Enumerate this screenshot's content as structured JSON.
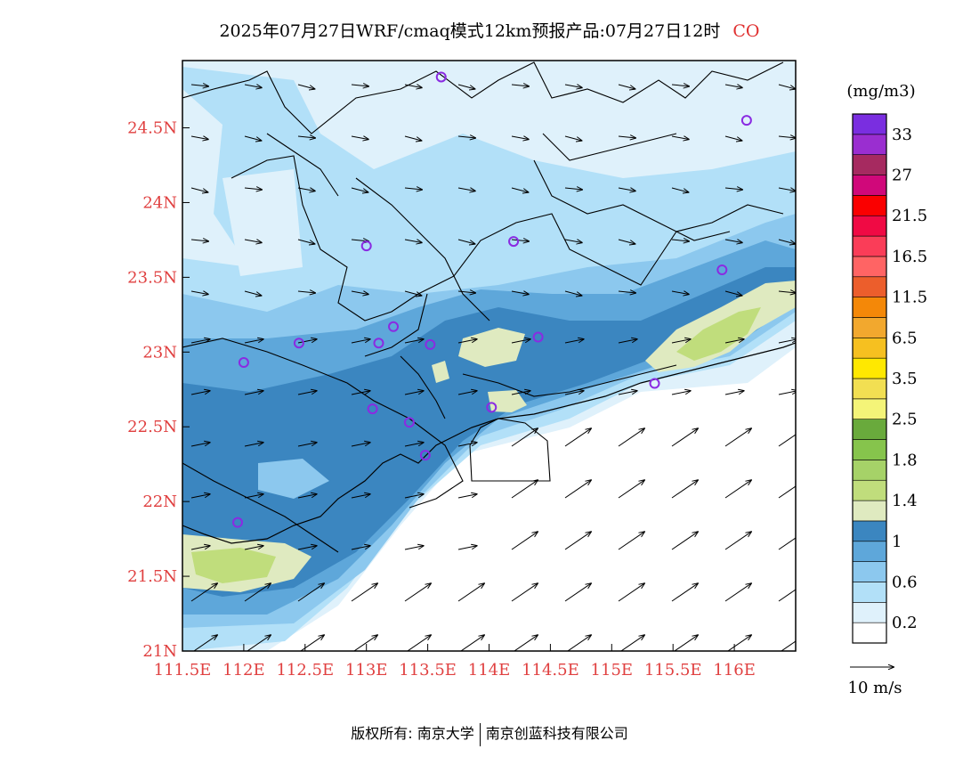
{
  "title": {
    "main": "2025年07月27日WRF/cmaq模式12km预报产品:07月27日12时",
    "species": "CO"
  },
  "axes": {
    "lon_ticks": [
      "111.5E",
      "112E",
      "112.5E",
      "113E",
      "113.5E",
      "114E",
      "114.5E",
      "115E",
      "115.5E",
      "116E"
    ],
    "lat_ticks": [
      "21N",
      "21.5N",
      "22N",
      "22.5N",
      "23N",
      "23.5N",
      "24N",
      "24.5N"
    ],
    "lon_range": [
      111.5,
      116.5
    ],
    "lat_range": [
      21.0,
      24.95
    ]
  },
  "colorbar": {
    "unit": "(mg/m3)",
    "colors": [
      "#ffffff",
      "#dff1fb",
      "#b2e0f8",
      "#8cc8ee",
      "#5ea7da",
      "#3b86c0",
      "#dfeac0",
      "#c0dd7c",
      "#a6d268",
      "#86c44c",
      "#69aa3c",
      "#f4f478",
      "#f2df52",
      "#ffe800",
      "#f6c020",
      "#f2a82e",
      "#f48808",
      "#ec5e2c",
      "#ff6464",
      "#fa3d58",
      "#f00a44",
      "#fa0000",
      "#d0087a",
      "#a62a60",
      "#9a2ed0",
      "#7a2ee0"
    ],
    "labels": [
      "0.2",
      "0.6",
      "1",
      "1.4",
      "1.8",
      "2.5",
      "3.5",
      "6.5",
      "11.5",
      "16.5",
      "21.5",
      "27",
      "33"
    ]
  },
  "wind_legend": {
    "label": "10 m/s"
  },
  "stations": [
    [
      113.61,
      24.84
    ],
    [
      116.1,
      24.55
    ],
    [
      113.0,
      23.71
    ],
    [
      114.2,
      23.74
    ],
    [
      115.9,
      23.55
    ],
    [
      112.45,
      23.06
    ],
    [
      112.0,
      22.93
    ],
    [
      113.1,
      23.06
    ],
    [
      113.22,
      23.17
    ],
    [
      113.52,
      23.05
    ],
    [
      114.4,
      23.1
    ],
    [
      113.05,
      22.62
    ],
    [
      113.35,
      22.53
    ],
    [
      114.02,
      22.63
    ],
    [
      115.35,
      22.79
    ],
    [
      113.48,
      22.31
    ],
    [
      111.95,
      21.86
    ]
  ],
  "footer": {
    "left": "版权所有: 南京大学",
    "right": "南京创蓝科技有限公司"
  }
}
